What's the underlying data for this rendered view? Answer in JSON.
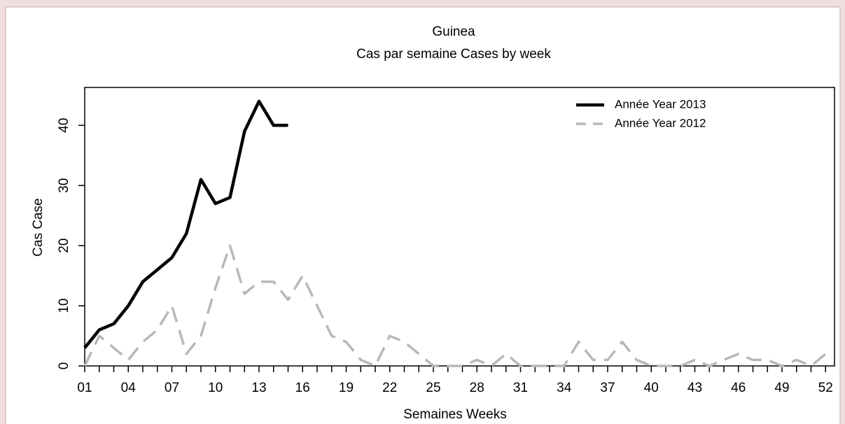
{
  "chart_data": {
    "type": "line",
    "title": "Guinea",
    "subtitle": "Cas par semaine Cases by week",
    "x_label": "Semaines Weeks",
    "y_label": "Cas Case",
    "categories": [
      "01",
      null,
      null,
      "04",
      null,
      null,
      "07",
      null,
      null,
      "10",
      null,
      null,
      "13",
      null,
      null,
      "16",
      null,
      null,
      "19",
      null,
      null,
      "22",
      null,
      null,
      "25",
      null,
      null,
      "28",
      null,
      null,
      "31",
      null,
      null,
      "34",
      null,
      null,
      "37",
      null,
      null,
      "40",
      null,
      null,
      "43",
      null,
      null,
      "46",
      null,
      null,
      "49",
      null,
      null,
      "52"
    ],
    "series": [
      {
        "name": "Année Year 2013",
        "color": "#000000",
        "style": "solid",
        "values": [
          3,
          6,
          7,
          10,
          14,
          16,
          18,
          22,
          31,
          27,
          28,
          39,
          44,
          40,
          40,
          null,
          null,
          null,
          null,
          null,
          null,
          null,
          null,
          null,
          null,
          null,
          null,
          null,
          null,
          null,
          null,
          null,
          null,
          null,
          null,
          null,
          null,
          null,
          null,
          null,
          null,
          null,
          null,
          null,
          null,
          null,
          null,
          null,
          null,
          null,
          null,
          null
        ]
      },
      {
        "name": "Année Year 2012",
        "color": "#b8b8b8",
        "style": "dashed",
        "values": [
          0,
          5,
          3,
          1,
          4,
          6,
          10,
          2,
          5,
          13,
          20,
          12,
          14,
          14,
          11,
          15,
          10,
          5,
          4,
          1,
          0,
          5,
          4,
          2,
          0,
          0,
          0,
          1,
          0,
          2,
          0,
          0,
          0,
          0,
          4,
          1,
          1,
          4,
          1,
          0,
          0,
          0,
          1,
          0,
          1,
          2,
          1,
          1,
          0,
          1,
          0,
          2
        ]
      }
    ],
    "ylim": [
      0,
      46.3
    ],
    "yticks": [
      0,
      10,
      20,
      30,
      40
    ],
    "legend": "top-right"
  }
}
